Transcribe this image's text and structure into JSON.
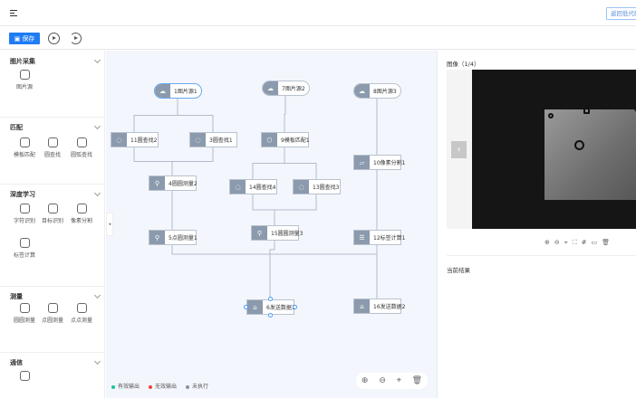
{
  "header": {
    "menu_icon": "menu-fold-icon",
    "back_button": "返回低代码"
  },
  "toolbar": {
    "save_label": "保存",
    "run_icon": "play-circle-icon",
    "run_loop_icon": "replay-circle-icon"
  },
  "sidebar": {
    "sections": [
      {
        "title": "图片采集",
        "items": [
          "图片源"
        ]
      },
      {
        "title": "匹配",
        "items": [
          "模板匹配",
          "圆查找",
          "圆弧查找"
        ]
      },
      {
        "title": "深度学习",
        "items": [
          "字符识别",
          "目标识别",
          "像素分割",
          "标签计算"
        ]
      },
      {
        "title": "测量",
        "items": [
          "圆圆测量",
          "点圆测量",
          "点点测量"
        ]
      },
      {
        "title": "通信",
        "items": [
          ""
        ]
      }
    ]
  },
  "canvas": {
    "nodes": [
      {
        "id": "1",
        "label": "1图片源1",
        "type": "source",
        "selected": true
      },
      {
        "id": "7",
        "label": "7图片源2",
        "type": "source"
      },
      {
        "id": "8",
        "label": "8图片源3",
        "type": "source"
      },
      {
        "id": "11",
        "label": "11圆查找2",
        "type": "circle-find"
      },
      {
        "id": "3",
        "label": "3圆查找1",
        "type": "circle-find"
      },
      {
        "id": "9",
        "label": "9模板匹配1",
        "type": "template-match"
      },
      {
        "id": "10",
        "label": "10像素分割1",
        "type": "pixel-seg"
      },
      {
        "id": "4",
        "label": "4圆圆测量2",
        "type": "measure"
      },
      {
        "id": "14",
        "label": "14圆查找4",
        "type": "circle-find"
      },
      {
        "id": "13",
        "label": "13圆查找3",
        "type": "circle-find"
      },
      {
        "id": "5",
        "label": "5点圆测量1",
        "type": "measure"
      },
      {
        "id": "15",
        "label": "15圆圆测量3",
        "type": "measure"
      },
      {
        "id": "12",
        "label": "12标签计算1",
        "type": "label-calc"
      },
      {
        "id": "6",
        "label": "6发送数据1",
        "type": "send",
        "active": true
      },
      {
        "id": "16",
        "label": "16发送数据2",
        "type": "send"
      }
    ],
    "edges": [
      [
        "1",
        "11"
      ],
      [
        "1",
        "3"
      ],
      [
        "11",
        "4"
      ],
      [
        "3",
        "4"
      ],
      [
        "4",
        "5"
      ],
      [
        "7",
        "9"
      ],
      [
        "9",
        "14"
      ],
      [
        "9",
        "13"
      ],
      [
        "14",
        "15"
      ],
      [
        "13",
        "15"
      ],
      [
        "8",
        "10"
      ],
      [
        "10",
        "12"
      ],
      [
        "5",
        "6"
      ],
      [
        "15",
        "6"
      ],
      [
        "12",
        "6"
      ],
      [
        "12",
        "16"
      ]
    ],
    "legend": [
      {
        "label": "有效输出",
        "color": "#19c3a0"
      },
      {
        "label": "无效输出",
        "color": "#f5403c"
      },
      {
        "label": "未执行",
        "color": "#8a93a0"
      }
    ],
    "controls": [
      "zoom-in-icon",
      "zoom-out-icon",
      "locate-icon",
      "trash-icon"
    ]
  },
  "preview": {
    "title": "图像（1/4）",
    "tools": [
      "zoom-in-icon",
      "zoom-out-icon",
      "locate-icon",
      "fullscreen-icon",
      "grid-icon",
      "image-icon",
      "trash-icon"
    ],
    "result_title": "当前结果"
  }
}
